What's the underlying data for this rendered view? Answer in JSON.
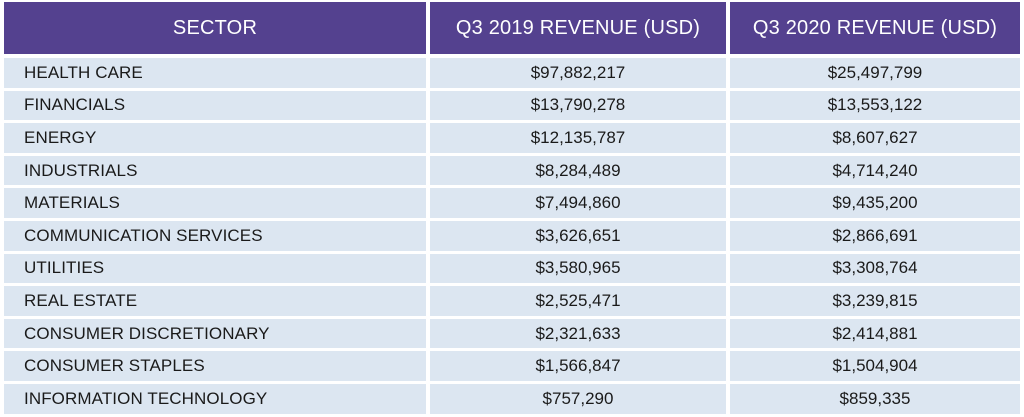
{
  "chart_data": {
    "type": "table",
    "columns": [
      "SECTOR",
      "Q3 2019 REVENUE (USD)",
      "Q3 2020 REVENUE (USD)"
    ],
    "rows": [
      {
        "sector": "HEALTH CARE",
        "q3_2019": "$97,882,217",
        "q3_2020": "$25,497,799"
      },
      {
        "sector": "FINANCIALS",
        "q3_2019": "$13,790,278",
        "q3_2020": "$13,553,122"
      },
      {
        "sector": "ENERGY",
        "q3_2019": "$12,135,787",
        "q3_2020": "$8,607,627"
      },
      {
        "sector": "INDUSTRIALS",
        "q3_2019": "$8,284,489",
        "q3_2020": "$4,714,240"
      },
      {
        "sector": "MATERIALS",
        "q3_2019": "$7,494,860",
        "q3_2020": "$9,435,200"
      },
      {
        "sector": "COMMUNICATION SERVICES",
        "q3_2019": "$3,626,651",
        "q3_2020": "$2,866,691"
      },
      {
        "sector": "UTILITIES",
        "q3_2019": "$3,580,965",
        "q3_2020": "$3,308,764"
      },
      {
        "sector": "REAL ESTATE",
        "q3_2019": "$2,525,471",
        "q3_2020": "$3,239,815"
      },
      {
        "sector": "CONSUMER DISCRETIONARY",
        "q3_2019": "$2,321,633",
        "q3_2020": "$2,414,881"
      },
      {
        "sector": "CONSUMER STAPLES",
        "q3_2019": "$1,566,847",
        "q3_2020": "$1,504,904"
      },
      {
        "sector": "INFORMATION TECHNOLOGY",
        "q3_2019": "$757,290",
        "q3_2020": "$859,335"
      }
    ]
  },
  "colors": {
    "header_bg": "#54418f",
    "header_text": "#ffffff",
    "row_bg": "#dce6f1",
    "row_text": "#1a1a1a"
  }
}
